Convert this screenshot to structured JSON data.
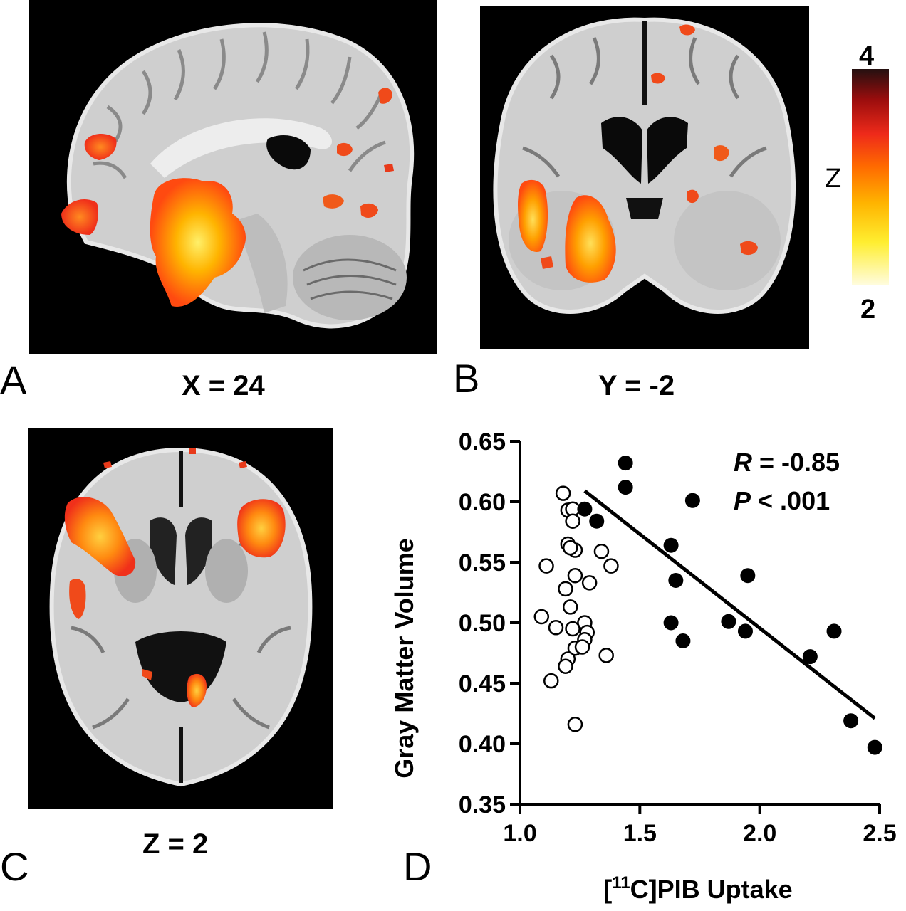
{
  "panels": {
    "A": {
      "letter": "A",
      "coord": "X = 24"
    },
    "B": {
      "letter": "B",
      "coord": "Y = -2"
    },
    "C": {
      "letter": "C",
      "coord": "Z = 2"
    },
    "D": {
      "letter": "D"
    }
  },
  "colorbar": {
    "max_label": "4",
    "min_label": "2",
    "axis_label": "Z",
    "colors": [
      "#fffce0",
      "#ffee30",
      "#ffb400",
      "#ff6a00",
      "#ee2a1a",
      "#9a0d0d",
      "#241010"
    ]
  },
  "chart_data": {
    "type": "scatter",
    "xlabel_prefix": "[",
    "xlabel_sup": "11",
    "xlabel_suffix": "C]PIB Uptake",
    "ylabel": "Gray Matter Volume",
    "xlim": [
      1.0,
      2.5
    ],
    "ylim": [
      0.35,
      0.65
    ],
    "xticks": [
      1.0,
      1.5,
      2.0,
      2.5
    ],
    "xtick_labels": [
      "1.0",
      "1.5",
      "2.0",
      "2.5"
    ],
    "yticks": [
      0.35,
      0.4,
      0.45,
      0.5,
      0.55,
      0.6,
      0.65
    ],
    "ytick_labels": [
      "0.35",
      "0.40",
      "0.45",
      "0.50",
      "0.55",
      "0.60",
      "0.65"
    ],
    "stats": {
      "r_symbol": "R",
      "r_text": " = -0.85",
      "p_symbol": "P",
      "p_text": " < .001"
    },
    "series": [
      {
        "marker": "open-circle",
        "points": [
          [
            1.18,
            0.607
          ],
          [
            1.2,
            0.593
          ],
          [
            1.22,
            0.594
          ],
          [
            1.22,
            0.584
          ],
          [
            1.2,
            0.565
          ],
          [
            1.23,
            0.56
          ],
          [
            1.21,
            0.562
          ],
          [
            1.34,
            0.559
          ],
          [
            1.38,
            0.547
          ],
          [
            1.11,
            0.547
          ],
          [
            1.23,
            0.539
          ],
          [
            1.29,
            0.533
          ],
          [
            1.19,
            0.528
          ],
          [
            1.21,
            0.513
          ],
          [
            1.09,
            0.505
          ],
          [
            1.27,
            0.5
          ],
          [
            1.15,
            0.496
          ],
          [
            1.22,
            0.495
          ],
          [
            1.28,
            0.492
          ],
          [
            1.27,
            0.486
          ],
          [
            1.23,
            0.479
          ],
          [
            1.26,
            0.48
          ],
          [
            1.2,
            0.47
          ],
          [
            1.36,
            0.473
          ],
          [
            1.19,
            0.464
          ],
          [
            1.13,
            0.452
          ],
          [
            1.23,
            0.416
          ]
        ]
      },
      {
        "marker": "filled-circle",
        "points": [
          [
            1.44,
            0.632
          ],
          [
            1.44,
            0.612
          ],
          [
            1.27,
            0.594
          ],
          [
            1.32,
            0.584
          ],
          [
            1.72,
            0.601
          ],
          [
            1.63,
            0.564
          ],
          [
            1.65,
            0.535
          ],
          [
            1.95,
            0.539
          ],
          [
            1.63,
            0.5
          ],
          [
            1.68,
            0.485
          ],
          [
            1.87,
            0.501
          ],
          [
            1.94,
            0.493
          ],
          [
            2.31,
            0.493
          ],
          [
            2.21,
            0.472
          ],
          [
            2.38,
            0.419
          ],
          [
            2.48,
            0.397
          ]
        ]
      }
    ],
    "fit_line": [
      [
        1.27,
        0.609
      ],
      [
        2.48,
        0.421
      ]
    ]
  }
}
